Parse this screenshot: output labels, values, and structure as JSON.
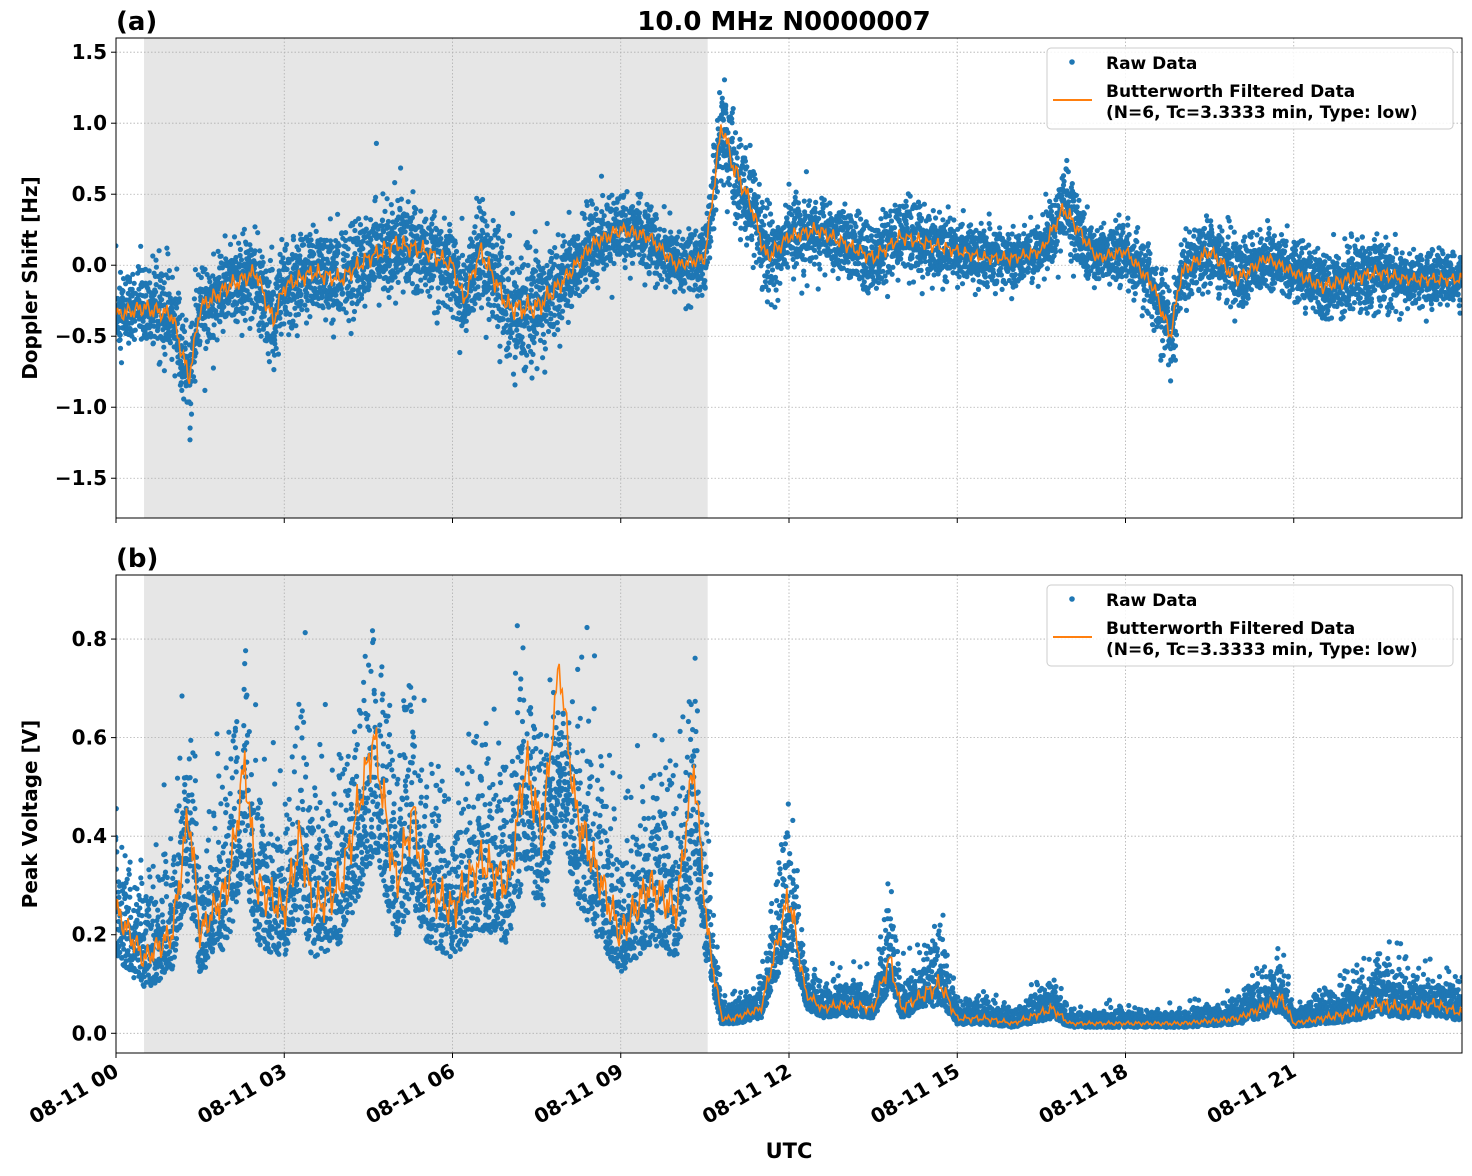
{
  "title": "10.0 MHz N0000007",
  "colors": {
    "raw": "#1f77b4",
    "filtered": "#ff7f0e",
    "shade": "#e6e6e6",
    "grid": "#b0b0b0"
  },
  "chart_data": [
    {
      "type": "scatter",
      "panel_label": "(a)",
      "ylabel": "Doppler Shift [Hz]",
      "xlabel": "",
      "xlim_hours_utc": [
        0,
        24
      ],
      "ylim": [
        -1.78,
        1.6
      ],
      "yticks": [
        -1.5,
        -1.0,
        -0.5,
        0.0,
        0.5,
        1.0,
        1.5
      ],
      "ytick_labels": [
        "−1.5",
        "−1.0",
        "−0.5",
        "0.0",
        "0.5",
        "1.0",
        "1.5"
      ],
      "grid": true,
      "shaded_interval_hours_utc": [
        0.5,
        10.55
      ],
      "legend": {
        "placement": "top-right",
        "entries": [
          "Raw Data",
          "Butterworth Filtered Data",
          "(N=6, Tc=3.3333 min, Type: low)"
        ]
      },
      "filtered": {
        "x_hours": [
          0,
          0.5,
          1,
          1.3,
          1.5,
          2,
          2.5,
          2.8,
          3,
          3.5,
          4,
          4.5,
          5,
          5.5,
          6,
          6.2,
          6.5,
          7,
          7.5,
          8,
          8.5,
          9,
          9.5,
          10,
          10.5,
          10.8,
          11,
          11.3,
          11.6,
          12,
          12.5,
          13,
          13.5,
          14,
          14.5,
          15,
          15.5,
          16,
          16.5,
          16.9,
          17.5,
          18,
          18.5,
          18.8,
          19,
          19.5,
          20,
          20.5,
          21,
          21.5,
          22,
          22.5,
          23,
          23.5,
          24
        ],
        "y": [
          -0.35,
          -0.3,
          -0.35,
          -0.8,
          -0.3,
          -0.15,
          -0.05,
          -0.4,
          -0.15,
          -0.05,
          -0.1,
          0.05,
          0.15,
          0.1,
          0.0,
          -0.25,
          0.1,
          -0.3,
          -0.3,
          -0.1,
          0.15,
          0.25,
          0.2,
          0.0,
          0.05,
          1.0,
          0.7,
          0.45,
          0.05,
          0.2,
          0.25,
          0.15,
          0.05,
          0.2,
          0.15,
          0.1,
          0.05,
          0.05,
          0.1,
          0.4,
          0.05,
          0.1,
          -0.15,
          -0.5,
          -0.05,
          0.1,
          -0.1,
          0.05,
          -0.05,
          -0.15,
          -0.1,
          -0.05,
          -0.1,
          -0.1,
          -0.1
        ]
      },
      "raw_spread": [
        0.25,
        0.3,
        0.3,
        0.35,
        0.3,
        0.3,
        0.3,
        0.35,
        0.3,
        0.3,
        0.3,
        0.3,
        0.3,
        0.3,
        0.3,
        0.3,
        0.35,
        0.4,
        0.4,
        0.3,
        0.25,
        0.25,
        0.25,
        0.2,
        0.25,
        0.35,
        0.35,
        0.3,
        0.3,
        0.25,
        0.25,
        0.25,
        0.25,
        0.25,
        0.25,
        0.2,
        0.2,
        0.2,
        0.2,
        0.3,
        0.2,
        0.2,
        0.25,
        0.3,
        0.25,
        0.25,
        0.25,
        0.2,
        0.2,
        0.25,
        0.25,
        0.25,
        0.2,
        0.2,
        0.2
      ]
    },
    {
      "type": "scatter",
      "panel_label": "(b)",
      "ylabel": "Peak Voltage [V]",
      "xlabel": "UTC",
      "xlim_hours_utc": [
        0,
        24
      ],
      "ylim": [
        -0.04,
        0.93
      ],
      "yticks": [
        0.0,
        0.2,
        0.4,
        0.6,
        0.8
      ],
      "ytick_labels": [
        "0.0",
        "0.2",
        "0.4",
        "0.6",
        "0.8"
      ],
      "xticks_hours_utc": [
        0,
        3,
        6,
        9,
        12,
        15,
        18,
        21
      ],
      "xtick_labels": [
        "08-11 00",
        "08-11 03",
        "08-11 06",
        "08-11 09",
        "08-11 12",
        "08-11 15",
        "08-11 18",
        "08-11 21"
      ],
      "grid": true,
      "shaded_interval_hours_utc": [
        0.5,
        10.55
      ],
      "legend": {
        "placement": "top-right",
        "entries": [
          "Raw Data",
          "Butterworth Filtered Data",
          "(N=6, Tc=3.3333 min, Type: low)"
        ]
      },
      "filtered": {
        "x_hours": [
          0,
          0.5,
          1,
          1.3,
          1.5,
          2,
          2.3,
          2.5,
          3,
          3.3,
          3.5,
          4,
          4.6,
          5,
          5.3,
          5.5,
          6,
          6.5,
          7,
          7.3,
          7.6,
          7.9,
          8.2,
          8.5,
          9,
          9.5,
          10,
          10.3,
          10.55,
          10.8,
          11,
          11.5,
          12,
          12.3,
          12.6,
          13,
          13.5,
          13.8,
          14,
          14.7,
          15,
          15.5,
          16,
          16.7,
          17,
          18,
          19,
          20,
          20.8,
          21,
          22,
          22.5,
          23,
          23.5,
          24
        ],
        "y": [
          0.25,
          0.15,
          0.2,
          0.45,
          0.2,
          0.3,
          0.55,
          0.3,
          0.25,
          0.4,
          0.25,
          0.3,
          0.6,
          0.3,
          0.45,
          0.3,
          0.25,
          0.35,
          0.3,
          0.55,
          0.4,
          0.75,
          0.45,
          0.35,
          0.2,
          0.3,
          0.25,
          0.55,
          0.2,
          0.03,
          0.03,
          0.05,
          0.28,
          0.08,
          0.05,
          0.06,
          0.05,
          0.15,
          0.05,
          0.1,
          0.03,
          0.03,
          0.02,
          0.05,
          0.02,
          0.02,
          0.02,
          0.03,
          0.07,
          0.02,
          0.04,
          0.06,
          0.05,
          0.06,
          0.04
        ]
      },
      "raw_spread": [
        0.15,
        0.12,
        0.15,
        0.25,
        0.15,
        0.2,
        0.25,
        0.2,
        0.2,
        0.25,
        0.2,
        0.22,
        0.25,
        0.22,
        0.25,
        0.22,
        0.2,
        0.22,
        0.22,
        0.28,
        0.25,
        0.12,
        0.25,
        0.22,
        0.18,
        0.2,
        0.2,
        0.2,
        0.15,
        0.03,
        0.03,
        0.04,
        0.2,
        0.05,
        0.04,
        0.05,
        0.04,
        0.12,
        0.04,
        0.1,
        0.03,
        0.03,
        0.02,
        0.05,
        0.02,
        0.02,
        0.02,
        0.03,
        0.07,
        0.02,
        0.05,
        0.07,
        0.06,
        0.05,
        0.04
      ]
    }
  ]
}
